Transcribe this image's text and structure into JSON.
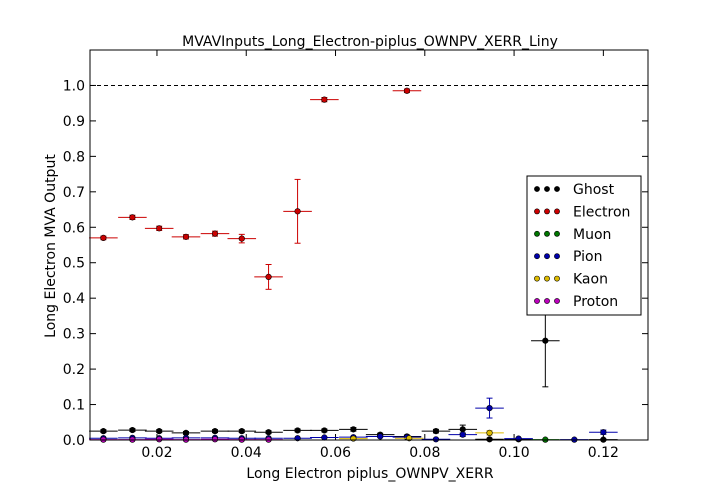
{
  "chart_data": {
    "type": "scatter",
    "title": "MVAVInputs_Long_Electron-piplus_OWNPV_XERR_Liny",
    "xlabel": "Long Electron piplus_OWNPV_XERR",
    "ylabel": "Long Electron MVA Output",
    "xlim": [
      0.005,
      0.13
    ],
    "ylim": [
      0.0,
      1.1
    ],
    "xticks": [
      0.02,
      0.04,
      0.06,
      0.08,
      0.1,
      0.12
    ],
    "xtick_labels": [
      "0.02",
      "0.04",
      "0.06",
      "0.08",
      "0.10",
      "0.12"
    ],
    "yticks": [
      0.0,
      0.1,
      0.2,
      0.3,
      0.4,
      0.5,
      0.6,
      0.7,
      0.8,
      0.9,
      1.0
    ],
    "ytick_labels": [
      "0.0",
      "0.1",
      "0.2",
      "0.3",
      "0.4",
      "0.5",
      "0.6",
      "0.7",
      "0.8",
      "0.9",
      "1.0"
    ],
    "reference_line": 1.0,
    "grid": false,
    "legend_position": "right",
    "bin_half_width": 0.0032,
    "series": [
      {
        "name": "Ghost",
        "color": "#000000",
        "points": [
          {
            "x": 0.008,
            "y": 0.025,
            "yerr": 0.004
          },
          {
            "x": 0.0145,
            "y": 0.028,
            "yerr": 0.004
          },
          {
            "x": 0.0205,
            "y": 0.025,
            "yerr": 0.004
          },
          {
            "x": 0.0265,
            "y": 0.02,
            "yerr": 0.004
          },
          {
            "x": 0.033,
            "y": 0.025,
            "yerr": 0.004
          },
          {
            "x": 0.039,
            "y": 0.025,
            "yerr": 0.004
          },
          {
            "x": 0.045,
            "y": 0.022,
            "yerr": 0.004
          },
          {
            "x": 0.0515,
            "y": 0.027,
            "yerr": 0.004
          },
          {
            "x": 0.0575,
            "y": 0.027,
            "yerr": 0.004
          },
          {
            "x": 0.064,
            "y": 0.03,
            "yerr": 0.005
          },
          {
            "x": 0.07,
            "y": 0.015,
            "yerr": 0.004
          },
          {
            "x": 0.076,
            "y": 0.01,
            "yerr": 0.004
          },
          {
            "x": 0.0825,
            "y": 0.025,
            "yerr": 0.005
          },
          {
            "x": 0.0885,
            "y": 0.03,
            "yerr": 0.012
          },
          {
            "x": 0.0945,
            "y": 0.002,
            "yerr": 0.003
          },
          {
            "x": 0.101,
            "y": 0.002,
            "yerr": 0.003
          },
          {
            "x": 0.107,
            "y": 0.28,
            "yerr": 0.13
          },
          {
            "x": 0.12,
            "y": 0.001,
            "yerr": 0.002
          }
        ]
      },
      {
        "name": "Electron",
        "color": "#cc0000",
        "points": [
          {
            "x": 0.008,
            "y": 0.57,
            "yerr": 0.005
          },
          {
            "x": 0.0145,
            "y": 0.628,
            "yerr": 0.006
          },
          {
            "x": 0.0205,
            "y": 0.597,
            "yerr": 0.006
          },
          {
            "x": 0.0265,
            "y": 0.573,
            "yerr": 0.006
          },
          {
            "x": 0.033,
            "y": 0.582,
            "yerr": 0.007
          },
          {
            "x": 0.039,
            "y": 0.568,
            "yerr": 0.012
          },
          {
            "x": 0.045,
            "y": 0.46,
            "yerr": 0.035
          },
          {
            "x": 0.0515,
            "y": 0.645,
            "yerr": 0.09
          },
          {
            "x": 0.0575,
            "y": 0.96,
            "yerr": 0.006
          },
          {
            "x": 0.076,
            "y": 0.985,
            "yerr": 0.005
          }
        ]
      },
      {
        "name": "Muon",
        "color": "#007700",
        "points": [
          {
            "x": 0.107,
            "y": 0.001,
            "yerr": 0.0
          }
        ]
      },
      {
        "name": "Pion",
        "color": "#0000aa",
        "points": [
          {
            "x": 0.008,
            "y": 0.005,
            "yerr": 0.001
          },
          {
            "x": 0.0145,
            "y": 0.006,
            "yerr": 0.001
          },
          {
            "x": 0.0205,
            "y": 0.005,
            "yerr": 0.001
          },
          {
            "x": 0.0265,
            "y": 0.006,
            "yerr": 0.001
          },
          {
            "x": 0.033,
            "y": 0.006,
            "yerr": 0.001
          },
          {
            "x": 0.039,
            "y": 0.005,
            "yerr": 0.001
          },
          {
            "x": 0.045,
            "y": 0.005,
            "yerr": 0.001
          },
          {
            "x": 0.0515,
            "y": 0.005,
            "yerr": 0.001
          },
          {
            "x": 0.0575,
            "y": 0.007,
            "yerr": 0.001
          },
          {
            "x": 0.064,
            "y": 0.008,
            "yerr": 0.002
          },
          {
            "x": 0.07,
            "y": 0.01,
            "yerr": 0.002
          },
          {
            "x": 0.076,
            "y": 0.008,
            "yerr": 0.002
          },
          {
            "x": 0.0825,
            "y": 0.002,
            "yerr": 0.002
          },
          {
            "x": 0.0885,
            "y": 0.015,
            "yerr": 0.005
          },
          {
            "x": 0.0945,
            "y": 0.09,
            "yerr": 0.028
          },
          {
            "x": 0.101,
            "y": 0.004,
            "yerr": 0.002
          },
          {
            "x": 0.1135,
            "y": 0.001,
            "yerr": 0.001
          },
          {
            "x": 0.12,
            "y": 0.022,
            "yerr": 0.006
          }
        ]
      },
      {
        "name": "Kaon",
        "color": "#ddbb00",
        "points": [
          {
            "x": 0.064,
            "y": 0.004,
            "yerr": 0.002
          },
          {
            "x": 0.0765,
            "y": 0.005,
            "yerr": 0.002
          },
          {
            "x": 0.0945,
            "y": 0.02,
            "yerr": 0.006
          }
        ]
      },
      {
        "name": "Proton",
        "color": "#bb00bb",
        "points": [
          {
            "x": 0.008,
            "y": 0.001,
            "yerr": 0.0
          },
          {
            "x": 0.0145,
            "y": 0.001,
            "yerr": 0.0
          },
          {
            "x": 0.0205,
            "y": 0.002,
            "yerr": 0.0
          },
          {
            "x": 0.0265,
            "y": 0.001,
            "yerr": 0.0
          },
          {
            "x": 0.033,
            "y": 0.002,
            "yerr": 0.0
          },
          {
            "x": 0.039,
            "y": 0.001,
            "yerr": 0.0
          },
          {
            "x": 0.045,
            "y": 0.001,
            "yerr": 0.0
          }
        ]
      }
    ]
  }
}
